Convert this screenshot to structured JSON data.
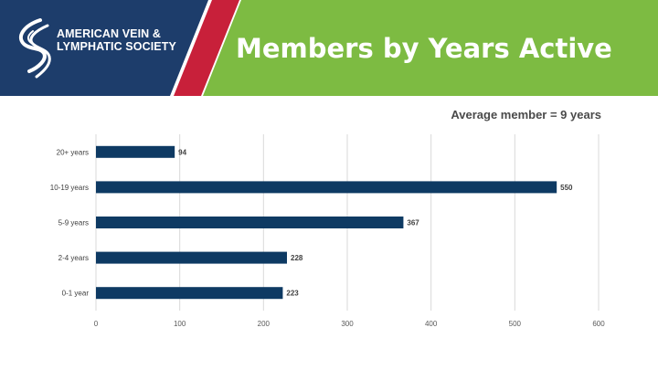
{
  "header": {
    "org_name_line1": "AMERICAN VEIN &",
    "org_name_line2": "LYMPHATIC SOCIETY",
    "title": "Members by Years Active",
    "colors": {
      "navy": "#1d3d6b",
      "red": "#c8203a",
      "green": "#7dbb42"
    }
  },
  "subtitle": "Average member = 9 years",
  "chart_data": {
    "type": "bar",
    "orientation": "horizontal",
    "categories": [
      "20+ years",
      "10-19 years",
      "5-9 years",
      "2-4 years",
      "0-1 year"
    ],
    "values": [
      94,
      550,
      367,
      228,
      223
    ],
    "data_labels": [
      "94",
      "550",
      "367",
      "228",
      "223"
    ],
    "xlim": [
      0,
      600
    ],
    "x_ticks": [
      0,
      100,
      200,
      300,
      400,
      500,
      600
    ],
    "grid": "vertical",
    "bar_color": "#0e3a63",
    "title": "",
    "xlabel": "",
    "ylabel": ""
  }
}
